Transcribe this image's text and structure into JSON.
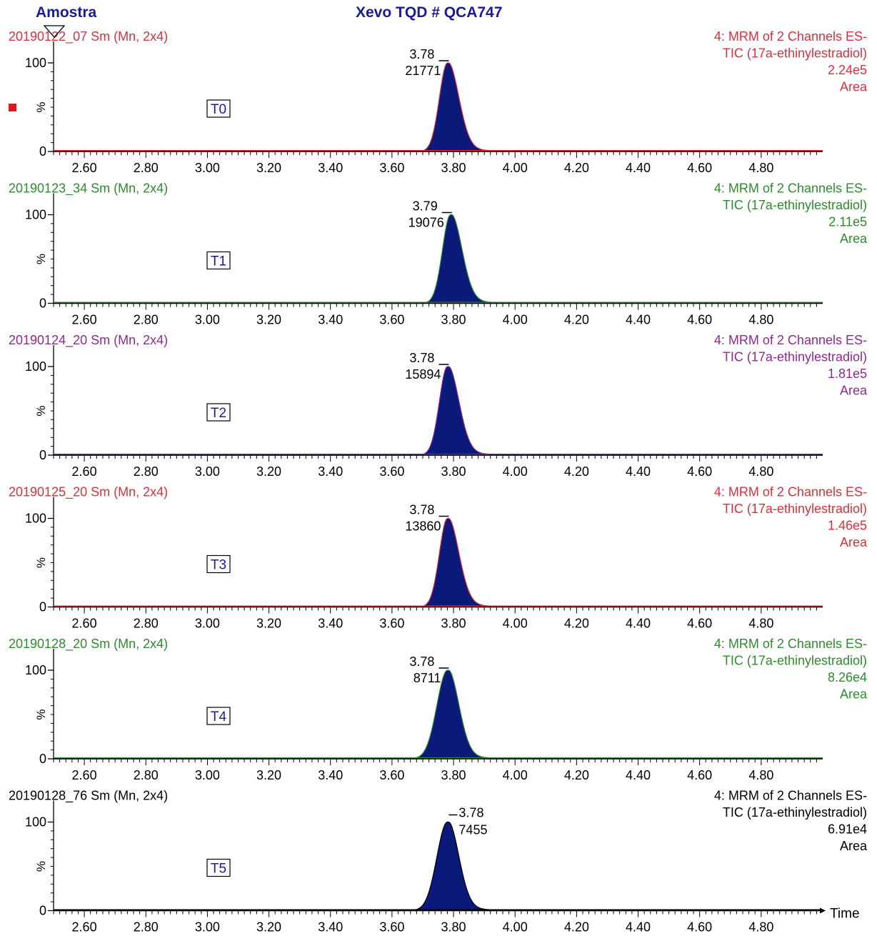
{
  "header": {
    "left_title": "Amostra",
    "center_title": "Xevo TQD # QCA747"
  },
  "colors": {
    "header": "#1a1a9e",
    "fill": "#0b1a7a",
    "axis": "#000000",
    "label_box": "#1a1a9e",
    "marker": "#e8141c"
  },
  "chart_data": [
    {
      "type": "area",
      "sample": "20190122_07 Sm (Mn, 2x4)",
      "label": "T0",
      "color": "#d9303c",
      "info": [
        "4: MRM of 2 Channels ES-",
        "TIC (17a-ethinylestradiol)",
        "2.24e5",
        "Area"
      ],
      "peak": {
        "rt": 3.78,
        "rt_label": "3.78",
        "area_label": "21771",
        "sigma_left": 0.026,
        "sigma_right": 0.036
      },
      "ylabel": "%",
      "ylim": [
        0,
        100
      ],
      "yticks": [
        0,
        100
      ],
      "xlim": [
        2.5,
        5.0
      ],
      "xticks": [
        "2.60",
        "2.80",
        "3.00",
        "3.20",
        "3.40",
        "3.60",
        "3.80",
        "4.00",
        "4.20",
        "4.40",
        "4.60",
        "4.80"
      ]
    },
    {
      "type": "area",
      "sample": "20190123_34 Sm (Mn, 2x4)",
      "label": "T1",
      "color": "#2e8b2e",
      "info": [
        "4: MRM of 2 Channels ES-",
        "TIC (17a-ethinylestradiol)",
        "2.11e5",
        "Area"
      ],
      "peak": {
        "rt": 3.79,
        "rt_label": "3.79",
        "area_label": "19076",
        "sigma_left": 0.026,
        "sigma_right": 0.036
      },
      "ylabel": "%",
      "ylim": [
        0,
        100
      ],
      "yticks": [
        0,
        100
      ],
      "xlim": [
        2.5,
        5.0
      ],
      "xticks": [
        "2.60",
        "2.80",
        "3.00",
        "3.20",
        "3.40",
        "3.60",
        "3.80",
        "4.00",
        "4.20",
        "4.40",
        "4.60",
        "4.80"
      ]
    },
    {
      "type": "area",
      "sample": "20190124_20 Sm (Mn, 2x4)",
      "label": "T2",
      "color": "#8e2a8e",
      "info": [
        "4: MRM of 2 Channels ES-",
        "TIC (17a-ethinylestradiol)",
        "1.81e5",
        "Area"
      ],
      "peak": {
        "rt": 3.78,
        "rt_label": "3.78",
        "area_label": "15894",
        "sigma_left": 0.026,
        "sigma_right": 0.036
      },
      "ylabel": "%",
      "ylim": [
        0,
        100
      ],
      "yticks": [
        0,
        100
      ],
      "xlim": [
        2.5,
        5.0
      ],
      "xticks": [
        "2.60",
        "2.80",
        "3.00",
        "3.20",
        "3.40",
        "3.60",
        "3.80",
        "4.00",
        "4.20",
        "4.40",
        "4.60",
        "4.80"
      ]
    },
    {
      "type": "area",
      "sample": "20190125_20 Sm (Mn, 2x4)",
      "label": "T3",
      "color": "#d9303c",
      "info": [
        "4: MRM of 2 Channels ES-",
        "TIC (17a-ethinylestradiol)",
        "1.46e5",
        "Area"
      ],
      "peak": {
        "rt": 3.78,
        "rt_label": "3.78",
        "area_label": "13860",
        "sigma_left": 0.026,
        "sigma_right": 0.036
      },
      "ylabel": "%",
      "ylim": [
        0,
        100
      ],
      "yticks": [
        0,
        100
      ],
      "xlim": [
        2.5,
        5.0
      ],
      "xticks": [
        "2.60",
        "2.80",
        "3.00",
        "3.20",
        "3.40",
        "3.60",
        "3.80",
        "4.00",
        "4.20",
        "4.40",
        "4.60",
        "4.80"
      ]
    },
    {
      "type": "area",
      "sample": "20190128_20 Sm (Mn, 2x4)",
      "label": "T4",
      "color": "#2e8b2e",
      "info": [
        "4: MRM of 2 Channels ES-",
        "TIC (17a-ethinylestradiol)",
        "8.26e4",
        "Area"
      ],
      "peak": {
        "rt": 3.78,
        "rt_label": "3.78",
        "area_label": "8711",
        "sigma_left": 0.034,
        "sigma_right": 0.036
      },
      "ylabel": "%",
      "ylim": [
        0,
        100
      ],
      "yticks": [
        0,
        100
      ],
      "xlim": [
        2.5,
        5.0
      ],
      "xticks": [
        "2.60",
        "2.80",
        "3.00",
        "3.20",
        "3.40",
        "3.60",
        "3.80",
        "4.00",
        "4.20",
        "4.40",
        "4.60",
        "4.80"
      ]
    },
    {
      "type": "area",
      "sample": "20190128_76 Sm (Mn, 2x4)",
      "label": "T5",
      "color": "#000000",
      "info": [
        "4: MRM of 2 Channels ES-",
        "TIC (17a-ethinylestradiol)",
        "6.91e4",
        "Area"
      ],
      "peak": {
        "rt": 3.78,
        "rt_label": "3.78",
        "area_label": "7455",
        "sigma_left": 0.034,
        "sigma_right": 0.036
      },
      "ylabel": "%",
      "ylim": [
        0,
        100
      ],
      "yticks": [
        0,
        100
      ],
      "xlim": [
        2.5,
        5.0
      ],
      "xticks": [
        "2.60",
        "2.80",
        "3.00",
        "3.20",
        "3.40",
        "3.60",
        "3.80",
        "4.00",
        "4.20",
        "4.40",
        "4.60",
        "4.80"
      ],
      "xlabel": "Time"
    }
  ]
}
